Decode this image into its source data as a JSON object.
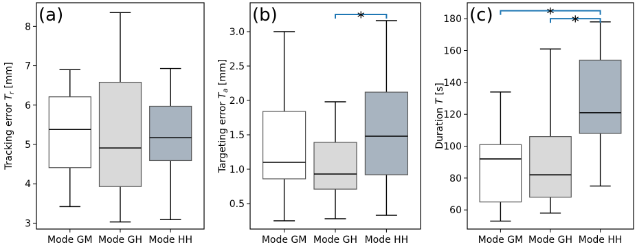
{
  "chart_data": [
    {
      "type": "box",
      "panel_label": "(a)",
      "ylabel": "Tracking error T_r [mm]",
      "ylabel_parts": {
        "main": "Tracking error ",
        "sym": "T",
        "sub": "r",
        "unit": " [mm]"
      },
      "ylim": [
        2.85,
        8.6
      ],
      "yticks": [
        3,
        4,
        5,
        6,
        7,
        8
      ],
      "ytick_labels": [
        "3",
        "4",
        "5",
        "6",
        "7",
        "8"
      ],
      "categories": [
        "Mode GM",
        "Mode GH",
        "Mode HH"
      ],
      "boxes": [
        {
          "whisker_low": 3.42,
          "q1": 4.41,
          "median": 5.38,
          "q3": 6.21,
          "whisker_high": 6.9
        },
        {
          "whisker_low": 3.03,
          "q1": 3.93,
          "median": 4.91,
          "q3": 6.58,
          "whisker_high": 8.35
        },
        {
          "whisker_low": 3.09,
          "q1": 4.59,
          "median": 5.17,
          "q3": 5.97,
          "whisker_high": 6.93
        }
      ],
      "significance": []
    },
    {
      "type": "box",
      "panel_label": "(b)",
      "ylabel": "Targeting error T_a [mm]",
      "ylabel_parts": {
        "main": "Targeting error ",
        "sym": "T",
        "sub": "a",
        "unit": " [mm]"
      },
      "ylim": [
        0.13,
        3.42
      ],
      "yticks": [
        0.5,
        1.0,
        1.5,
        2.0,
        2.5,
        3.0
      ],
      "ytick_labels": [
        "0.5",
        "1.0",
        "1.5",
        "2.0",
        "2.5",
        "3.0"
      ],
      "categories": [
        "Mode GM",
        "Mode GH",
        "Mode HH"
      ],
      "boxes": [
        {
          "whisker_low": 0.25,
          "q1": 0.86,
          "median": 1.1,
          "q3": 1.84,
          "whisker_high": 3.0
        },
        {
          "whisker_low": 0.28,
          "q1": 0.71,
          "median": 0.93,
          "q3": 1.39,
          "whisker_high": 1.98
        },
        {
          "whisker_low": 0.33,
          "q1": 0.92,
          "median": 1.48,
          "q3": 2.12,
          "whisker_high": 3.16
        }
      ],
      "significance": [
        {
          "from": 1,
          "to": 2,
          "y": 3.25,
          "label": "*"
        }
      ]
    },
    {
      "type": "box",
      "panel_label": "(c)",
      "ylabel": "Duration T [s]",
      "ylabel_parts": {
        "main": "Duration ",
        "sym": "T",
        "sub": "",
        "unit": " [s]"
      },
      "ylim": [
        48,
        190
      ],
      "yticks": [
        60,
        80,
        100,
        120,
        140,
        160,
        180
      ],
      "ytick_labels": [
        "60",
        "80",
        "100",
        "120",
        "140",
        "160",
        "180"
      ],
      "categories": [
        "Mode GM",
        "Mode GH",
        "Mode HH"
      ],
      "boxes": [
        {
          "whisker_low": 53,
          "q1": 65,
          "median": 92,
          "q3": 101,
          "whisker_high": 134
        },
        {
          "whisker_low": 58,
          "q1": 68,
          "median": 82,
          "q3": 106,
          "whisker_high": 161
        },
        {
          "whisker_low": 75,
          "q1": 108,
          "median": 121,
          "q3": 154,
          "whisker_high": 178
        }
      ],
      "significance": [
        {
          "from": 0,
          "to": 2,
          "y": 185,
          "label": "*"
        },
        {
          "from": 1,
          "to": 2,
          "y": 180,
          "label": "*"
        }
      ]
    }
  ],
  "colors": {
    "box_fills": [
      "#ffffff",
      "#d9d9d9",
      "#a8b4c0"
    ],
    "box_edge": "#555555",
    "whisker": "#000000",
    "median": "#000000",
    "significance": "#1f77b4"
  }
}
